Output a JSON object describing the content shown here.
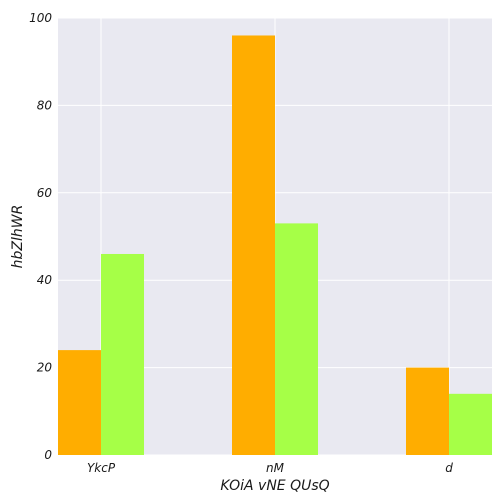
{
  "chart_data": {
    "type": "bar",
    "title": "",
    "xlabel": "KOiA vNE QUsQ",
    "ylabel": "hbZlhWR",
    "categories": [
      "YkcP",
      "nM",
      "d"
    ],
    "series": [
      {
        "values": [
          24,
          96,
          20
        ],
        "color": "#ffad00"
      },
      {
        "values": [
          46,
          53,
          14
        ],
        "color": "#a6ff47"
      }
    ],
    "ylim": [
      0,
      100
    ],
    "yticks": [
      0,
      20,
      40,
      60,
      80,
      100
    ],
    "grid": true,
    "legend": "none",
    "background": "#e9e9f1",
    "grid_color": "#ffffff"
  }
}
